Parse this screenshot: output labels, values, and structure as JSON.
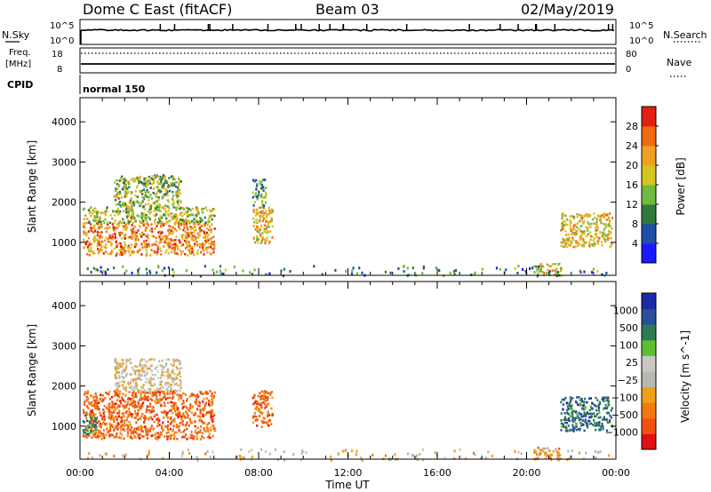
{
  "header": {
    "station": "Dome C East (fitACF)",
    "beam": "Beam 03",
    "date": "02/May/2019"
  },
  "status_panels": {
    "nsky_label": "N.Sky",
    "nsearch_label": "N.Search",
    "nsky_ticks": [
      "10^5",
      "10^0"
    ],
    "nsearch_ticks": [
      "10^5",
      "10^0"
    ],
    "freq_label": "Freq.",
    "freq_unit": "[MHz]",
    "freq_ticks": [
      "18",
      "8"
    ],
    "nave_label": "Nave",
    "nave_ticks": [
      "80",
      "0"
    ],
    "cpid_label": "CPID",
    "cpid_value": "normal 150"
  },
  "colors": {
    "power": [
      "#1a1aff",
      "#1f4fa8",
      "#2f7a3a",
      "#6fba3f",
      "#d6c520",
      "#f0a020",
      "#f06a10",
      "#e02010"
    ],
    "velocity": [
      "#e01010",
      "#f05010",
      "#f07a10",
      "#f0a018",
      "#b8b8b0",
      "#c8c8c0",
      "#5cbf30",
      "#2f7a55",
      "#2a4f9a",
      "#1a2aa8"
    ]
  },
  "chart_data": [
    {
      "type": "heatmap",
      "quantity": "power",
      "xlabel": "Time UT",
      "ylabel": "Slant Range [km]",
      "xticks": [
        "00:00",
        "04:00",
        "08:00",
        "12:00",
        "16:00",
        "20:00",
        "00:00"
      ],
      "x_range_hours": [
        0,
        24
      ],
      "yticks": [
        1000,
        2000,
        3000,
        4000
      ],
      "ylim": [
        180,
        4600
      ],
      "colorbar": {
        "label": "Power [dB]",
        "range": [
          0,
          32
        ],
        "ticks": [
          4,
          8,
          12,
          16,
          20,
          24,
          28
        ]
      },
      "regions": [
        {
          "t0": 0.1,
          "t1": 6.0,
          "r0": 700,
          "r1": 1500,
          "level": 0.75
        },
        {
          "t0": 0.1,
          "t1": 6.0,
          "r0": 1500,
          "r1": 1900,
          "level": 0.5
        },
        {
          "t0": 1.5,
          "t1": 4.5,
          "r0": 1900,
          "r1": 2700,
          "level": 0.45
        },
        {
          "t0": 7.7,
          "t1": 8.6,
          "r0": 1000,
          "r1": 1900,
          "level": 0.65
        },
        {
          "t0": 7.7,
          "t1": 8.3,
          "r0": 1900,
          "r1": 2600,
          "level": 0.35
        },
        {
          "t0": 20.3,
          "t1": 21.5,
          "r0": 180,
          "r1": 500,
          "level": 0.55
        },
        {
          "t0": 21.5,
          "t1": 23.8,
          "r0": 900,
          "r1": 1750,
          "level": 0.6
        },
        {
          "t0": 0.2,
          "t1": 23.8,
          "r0": 180,
          "r1": 450,
          "level": 0.3
        }
      ]
    },
    {
      "type": "heatmap",
      "quantity": "velocity",
      "xlabel": "Time UT",
      "ylabel": "Slant Range [km]",
      "xticks": [
        "00:00",
        "04:00",
        "08:00",
        "12:00",
        "16:00",
        "20:00",
        "00:00"
      ],
      "x_range_hours": [
        0,
        24
      ],
      "yticks": [
        1000,
        2000,
        3000,
        4000
      ],
      "ylim": [
        180,
        4600
      ],
      "colorbar": {
        "label": "Velocity [m s^-1]",
        "ticks": [
          "1000",
          "500",
          "100",
          "25",
          "−25",
          "−100",
          "−500",
          "−1000"
        ]
      },
      "regions": [
        {
          "t0": 0.1,
          "t1": 6.0,
          "r0": 700,
          "r1": 1900,
          "level": 0.2
        },
        {
          "t0": 0.1,
          "t1": 0.7,
          "r0": 800,
          "r1": 1300,
          "level": 0.75
        },
        {
          "t0": 1.5,
          "t1": 4.5,
          "r0": 1900,
          "r1": 2700,
          "level": 0.45
        },
        {
          "t0": 7.7,
          "t1": 8.6,
          "r0": 1000,
          "r1": 1900,
          "level": 0.2
        },
        {
          "t0": 20.3,
          "t1": 21.5,
          "r0": 180,
          "r1": 500,
          "level": 0.3
        },
        {
          "t0": 21.5,
          "t1": 23.8,
          "r0": 900,
          "r1": 1750,
          "level": 0.8
        },
        {
          "t0": 0.2,
          "t1": 23.8,
          "r0": 180,
          "r1": 450,
          "level": 0.4
        }
      ]
    }
  ]
}
